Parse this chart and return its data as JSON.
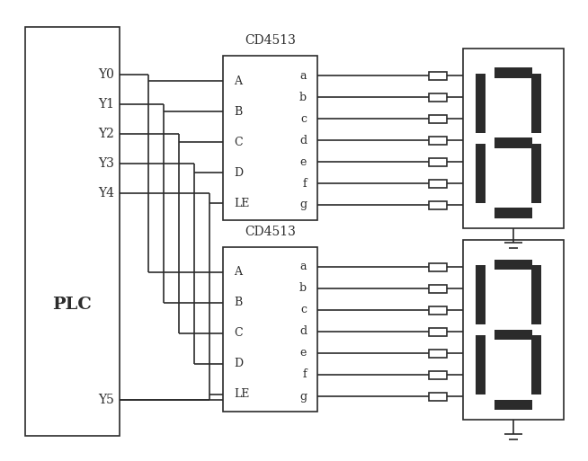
{
  "bg_color": "#ffffff",
  "line_color": "#2b2b2b",
  "segment_color": "#2b2b2b",
  "fig_width": 6.54,
  "fig_height": 5.13,
  "plc_label": "PLC",
  "plc_outputs_top": [
    "Y0",
    "Y1",
    "Y2",
    "Y3",
    "Y4"
  ],
  "plc_output_bottom": "Y5",
  "cd4513_label": "CD4513",
  "cd4513_inputs": [
    "A",
    "B",
    "C",
    "D",
    "LE"
  ],
  "cd4513_outputs": [
    "a",
    "b",
    "c",
    "d",
    "e",
    "f",
    "g"
  ]
}
